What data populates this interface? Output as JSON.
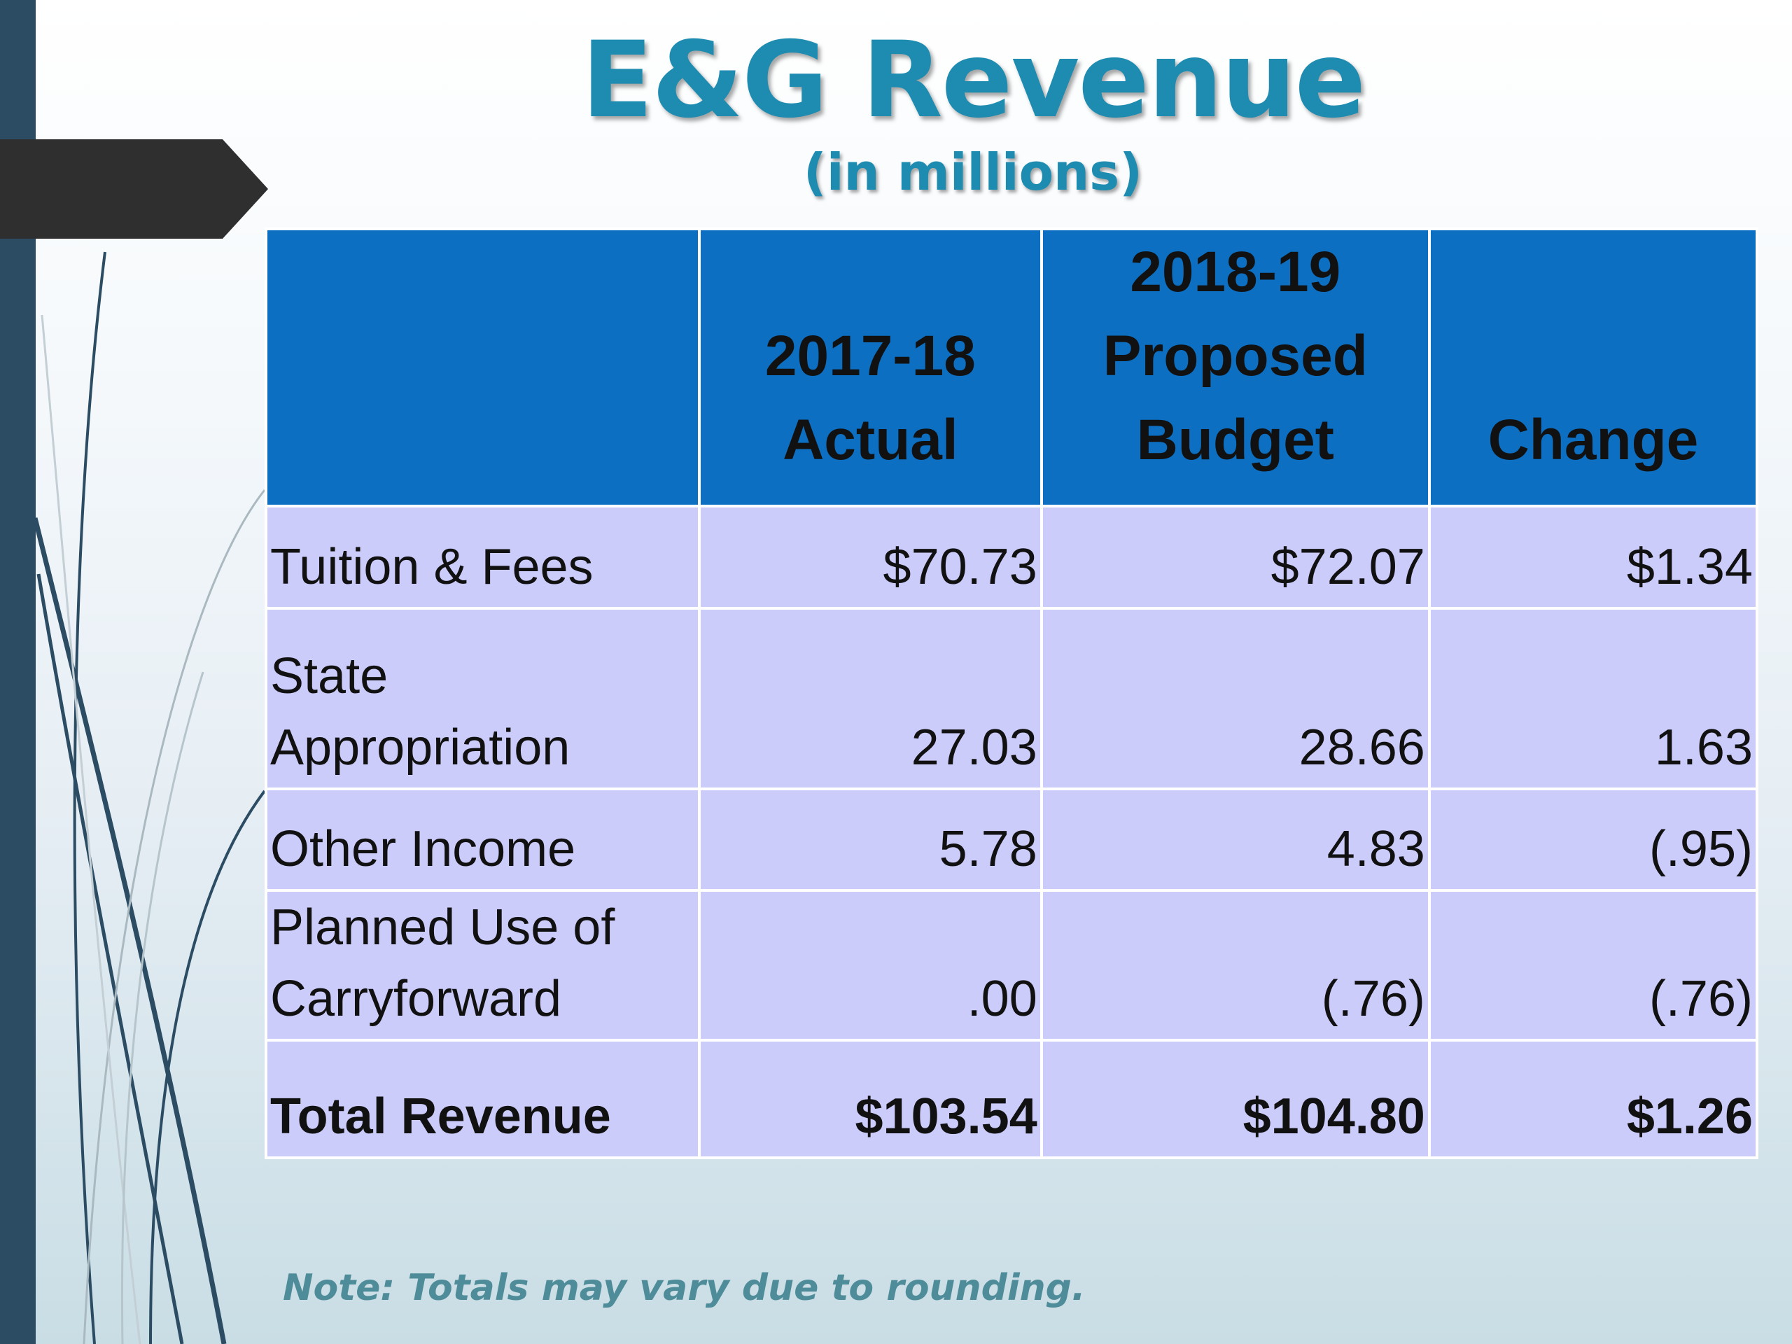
{
  "slide": {
    "title": "E&G Revenue",
    "subtitle": "(in millions)"
  },
  "table": {
    "headers": {
      "col0": "",
      "col1_line1": "2017-18",
      "col1_line2": "Actual",
      "col2_line1": "2018-19",
      "col2_line2": "Proposed",
      "col2_line3": "Budget",
      "col3": "Change"
    },
    "rows": [
      {
        "label_line1": "Tuition & Fees",
        "label_line2": "",
        "actual": "$70.73",
        "proposed": "$72.07",
        "change": "$1.34"
      },
      {
        "label_line1": "State",
        "label_line2": "Appropriation",
        "actual": "27.03",
        "proposed": "28.66",
        "change": "1.63"
      },
      {
        "label_line1": "Other Income",
        "label_line2": "",
        "actual": "5.78",
        "proposed": "4.83",
        "change": "(.95)"
      },
      {
        "label_line1": "Planned Use of",
        "label_line2": "Carryforward",
        "actual": ".00",
        "proposed": "(.76)",
        "change": "(.76)"
      },
      {
        "label_line1": "Total Revenue",
        "label_line2": "",
        "actual": "$103.54",
        "proposed": "$104.80",
        "change": "$1.26"
      }
    ]
  },
  "note": "Note: Totals may vary due to rounding.",
  "colors": {
    "title": "#1e8bb0",
    "header_fill": "#0d6fc2",
    "body_fill": "#ccccfb",
    "left_bar": "#2b4c63",
    "note": "#4f8c99"
  }
}
